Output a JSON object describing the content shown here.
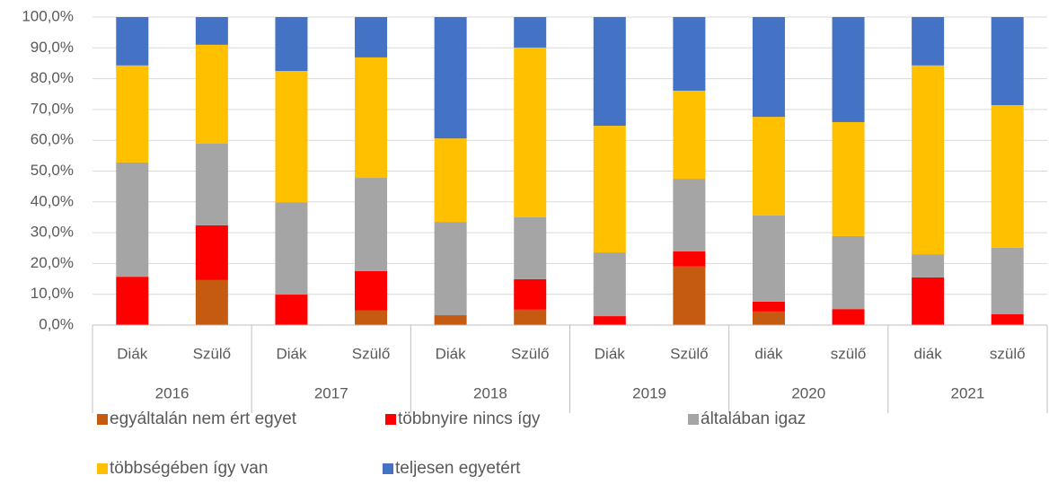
{
  "chart_data": {
    "type": "stacked_bar",
    "categories": [
      "Diák",
      "Szülő",
      "Diák",
      "Szülő",
      "Diák",
      "Szülő",
      "Diák",
      "Szülő",
      "diák",
      "szülő",
      "diák",
      "szülő"
    ],
    "groups": [
      "2016",
      "2017",
      "2018",
      "2019",
      "2020",
      "2021"
    ],
    "series": [
      {
        "name": "egyáltalán nem ért egyet",
        "color": "#c55a11",
        "values": [
          0,
          14.6,
          0,
          4.7,
          3.2,
          5.0,
          0,
          19.0,
          4.4,
          0,
          0,
          0
        ]
      },
      {
        "name": "többnyire nincs így",
        "color": "#ff0000",
        "values": [
          15.7,
          17.8,
          9.9,
          12.8,
          0,
          9.9,
          2.9,
          4.9,
          3.2,
          5.2,
          15.5,
          3.5
        ]
      },
      {
        "name": "általában igaz",
        "color": "#a5a5a5",
        "values": [
          37.1,
          26.5,
          30.0,
          30.3,
          30.3,
          20.1,
          20.7,
          23.6,
          28.0,
          23.7,
          7.5,
          21.6
        ]
      },
      {
        "name": "többségében így van",
        "color": "#ffc000",
        "values": [
          31.5,
          32.1,
          42.6,
          39.1,
          27.1,
          55.1,
          41.1,
          28.6,
          32.0,
          37.0,
          61.3,
          46.3
        ]
      },
      {
        "name": "teljesen egyetért",
        "color": "#4472c4",
        "values": [
          15.7,
          9.0,
          17.5,
          13.1,
          39.4,
          9.9,
          35.3,
          23.9,
          32.4,
          34.1,
          15.7,
          28.6
        ]
      }
    ],
    "ylim": [
      0,
      100
    ],
    "yticks": [
      {
        "value": 0,
        "label": "0,0%"
      },
      {
        "value": 10,
        "label": "10,0%"
      },
      {
        "value": 20,
        "label": "20,0%"
      },
      {
        "value": 30,
        "label": "30,0%"
      },
      {
        "value": 40,
        "label": "40,0%"
      },
      {
        "value": 50,
        "label": "50,0%"
      },
      {
        "value": 60,
        "label": "60,0%"
      },
      {
        "value": 70,
        "label": "70,0%"
      },
      {
        "value": 80,
        "label": "80,0%"
      },
      {
        "value": 90,
        "label": "90,0%"
      },
      {
        "value": 100,
        "label": "100,0%"
      }
    ],
    "grid": true,
    "legend": "bottom"
  }
}
